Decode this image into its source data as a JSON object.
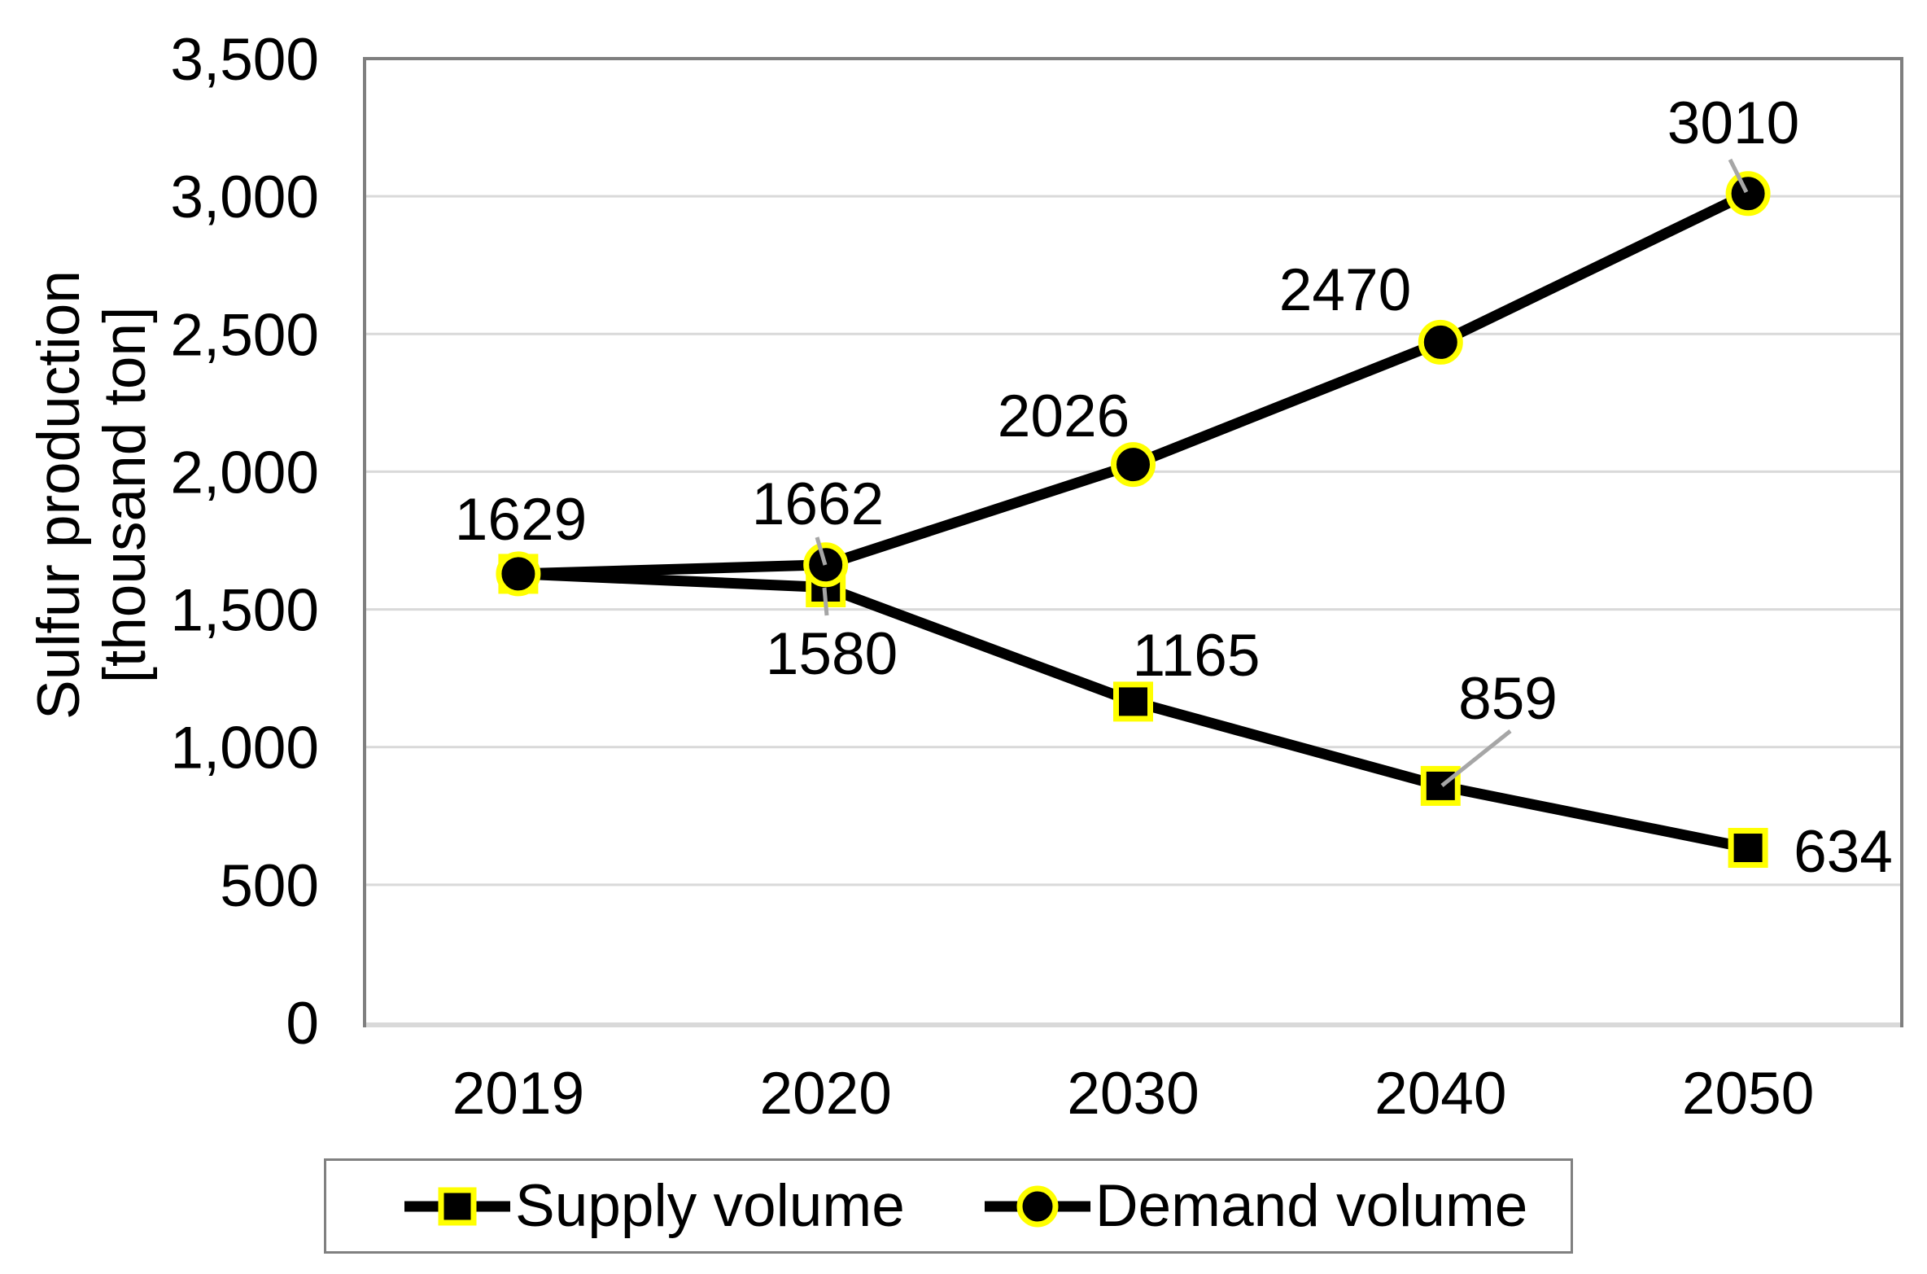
{
  "chart_data": {
    "type": "line",
    "title": "",
    "categories": [
      "2019",
      "2020",
      "2030",
      "2040",
      "2050"
    ],
    "series": [
      {
        "name": "Supply volume",
        "marker": "square",
        "values": [
          1629,
          1580,
          1165,
          859,
          634
        ],
        "show_labels": [
          false,
          true,
          true,
          true,
          true
        ]
      },
      {
        "name": "Demand volume",
        "marker": "circle",
        "values": [
          1629,
          1662,
          2026,
          2470,
          3010
        ],
        "show_labels": [
          true,
          true,
          true,
          true,
          true
        ]
      }
    ],
    "ylabel_line1": "Sulfur production",
    "ylabel_line2": "[thousand ton]",
    "xlabel": "",
    "y_ticks": [
      "0",
      "500",
      "1,000",
      "1,500",
      "2,000",
      "2,500",
      "3,000",
      "3,500"
    ],
    "y_tick_step": 500,
    "ylim": [
      0,
      3500
    ],
    "grid": "horizontal-only",
    "legend_position": "bottom",
    "colors": {
      "series": "#000000",
      "marker_fill": "#000000",
      "marker_ring": "#ffff00",
      "gridline": "#d9d9d9",
      "plot_border": "#7f7f7f",
      "plot_border_bottom": "#d9d9d9",
      "leader_line": "#a6a6a6",
      "legend_border": "#808080",
      "text": "#000000",
      "background": "#ffffff"
    }
  }
}
